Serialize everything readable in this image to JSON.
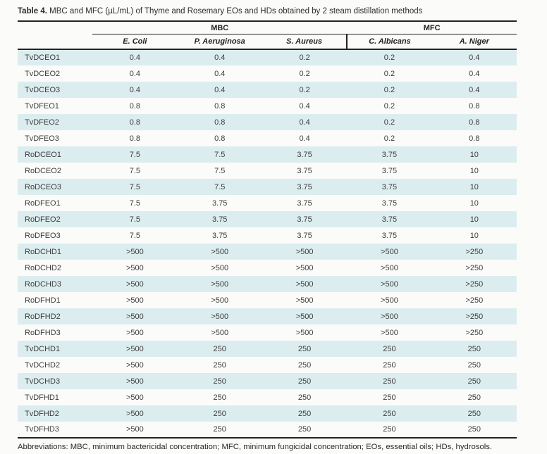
{
  "page": {
    "title_label": "Table 4.",
    "title_text": " MBC and MFC (µL/mL) of Thyme and Rosemary EOs and HDs obtained by 2 steam distillation methods",
    "footnote": "Abbreviations: MBC, minimum bactericidal concentration; MFC, minimum fungicidal concentration; EOs, essential oils; HDs, hydrosols."
  },
  "table": {
    "group_headers": [
      {
        "label": "MBC",
        "span": 3
      },
      {
        "label": "MFC",
        "span": 2
      }
    ],
    "columns": [
      "E. Coli",
      "P. Aeruginosa",
      "S. Aureus",
      "C. Albicans",
      "A. Niger"
    ],
    "rows": [
      {
        "label": "TvDCEO1",
        "values": [
          "0.4",
          "0.4",
          "0.2",
          "0.2",
          "0.4"
        ]
      },
      {
        "label": "TvDCEO2",
        "values": [
          "0.4",
          "0.4",
          "0.2",
          "0.2",
          "0.4"
        ]
      },
      {
        "label": "TvDCEO3",
        "values": [
          "0.4",
          "0.4",
          "0.2",
          "0.2",
          "0.4"
        ]
      },
      {
        "label": "TvDFEO1",
        "values": [
          "0.8",
          "0.8",
          "0.4",
          "0.2",
          "0.8"
        ]
      },
      {
        "label": "TvDFEO2",
        "values": [
          "0.8",
          "0.8",
          "0.4",
          "0.2",
          "0.8"
        ]
      },
      {
        "label": "TvDFEO3",
        "values": [
          "0.8",
          "0.8",
          "0.4",
          "0.2",
          "0.8"
        ]
      },
      {
        "label": "RoDCEO1",
        "values": [
          "7.5",
          "7.5",
          "3.75",
          "3.75",
          "10"
        ]
      },
      {
        "label": "RoDCEO2",
        "values": [
          "7.5",
          "7.5",
          "3.75",
          "3.75",
          "10"
        ]
      },
      {
        "label": "RoDCEO3",
        "values": [
          "7.5",
          "7.5",
          "3.75",
          "3.75",
          "10"
        ]
      },
      {
        "label": "RoDFEO1",
        "values": [
          "7.5",
          "3.75",
          "3.75",
          "3.75",
          "10"
        ]
      },
      {
        "label": "RoDFEO2",
        "values": [
          "7.5",
          "3.75",
          "3.75",
          "3.75",
          "10"
        ]
      },
      {
        "label": "RoDFEO3",
        "values": [
          "7.5",
          "3.75",
          "3.75",
          "3.75",
          "10"
        ]
      },
      {
        "label": "RoDCHD1",
        "values": [
          ">500",
          ">500",
          ">500",
          ">500",
          ">250"
        ]
      },
      {
        "label": "RoDCHD2",
        "values": [
          ">500",
          ">500",
          ">500",
          ">500",
          ">250"
        ]
      },
      {
        "label": "RoDCHD3",
        "values": [
          ">500",
          ">500",
          ">500",
          ">500",
          ">250"
        ]
      },
      {
        "label": "RoDFHD1",
        "values": [
          ">500",
          ">500",
          ">500",
          ">500",
          ">250"
        ]
      },
      {
        "label": "RoDFHD2",
        "values": [
          ">500",
          ">500",
          ">500",
          ">500",
          ">250"
        ]
      },
      {
        "label": "RoDFHD3",
        "values": [
          ">500",
          ">500",
          ">500",
          ">500",
          ">250"
        ]
      },
      {
        "label": "TvDCHD1",
        "values": [
          ">500",
          "250",
          "250",
          "250",
          "250"
        ]
      },
      {
        "label": "TvDCHD2",
        "values": [
          ">500",
          "250",
          "250",
          "250",
          "250"
        ]
      },
      {
        "label": "TvDCHD3",
        "values": [
          ">500",
          "250",
          "250",
          "250",
          "250"
        ]
      },
      {
        "label": "TvDFHD1",
        "values": [
          ">500",
          "250",
          "250",
          "250",
          "250"
        ]
      },
      {
        "label": "TvDFHD2",
        "values": [
          ">500",
          "250",
          "250",
          "250",
          "250"
        ]
      },
      {
        "label": "TvDFHD3",
        "values": [
          ">500",
          "250",
          "250",
          "250",
          "250"
        ]
      }
    ]
  },
  "colors": {
    "stripe": "#dcedef",
    "rule": "#232323",
    "text": "#3c3c3c"
  }
}
